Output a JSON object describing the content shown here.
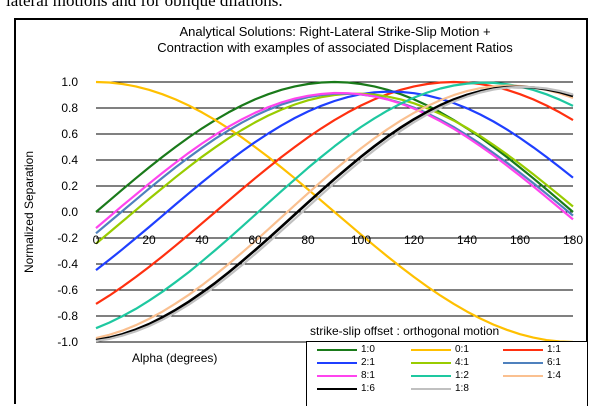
{
  "page": {
    "caption_fragment": "lateral motions and for oblique dilations."
  },
  "chart_data": {
    "type": "line",
    "title": [
      "Analytical Solutions: Right-Lateral Strike-Slip Motion +",
      "Contraction with examples of associated Displacement Ratios"
    ],
    "xlabel": "Alpha (degrees)",
    "ylabel": "Normalized Separation",
    "xlim": [
      0,
      180
    ],
    "ylim": [
      -1.0,
      1.0
    ],
    "x_ticks": [
      0,
      20,
      40,
      60,
      80,
      100,
      120,
      140,
      160,
      180
    ],
    "x_tick_labels": [
      "0",
      "20",
      "40",
      "60",
      "80",
      "100",
      "120",
      "140",
      "160",
      "180"
    ],
    "y_ticks": [
      1.0,
      0.8,
      0.6,
      0.4,
      0.2,
      0.0,
      -0.2,
      -0.4,
      -0.6,
      -0.8,
      -1.0
    ],
    "y_tick_labels": [
      "1.0",
      "0.8",
      "0.6",
      "0.4",
      "0.2",
      "0.0",
      "-0.2",
      "-0.4",
      "-0.6",
      "-0.8",
      "-1.0"
    ],
    "grid": "horizontal",
    "x_step": 5,
    "legend_title": "strike-slip offset : orthogonal motion",
    "legend_position": "bottom-right",
    "series": [
      {
        "name": "1:0",
        "color": "#1a7a1a",
        "values": [
          0.0,
          0.087,
          0.174,
          0.259,
          0.342,
          0.423,
          0.5,
          0.574,
          0.643,
          0.707,
          0.766,
          0.819,
          0.866,
          0.906,
          0.94,
          0.966,
          0.985,
          0.996,
          1.0,
          0.996,
          0.985,
          0.966,
          0.94,
          0.906,
          0.866,
          0.819,
          0.766,
          0.707,
          0.643,
          0.574,
          0.5,
          0.423,
          0.342,
          0.259,
          0.174,
          0.087,
          0.0
        ]
      },
      {
        "name": "0:1",
        "color": "#ffc000",
        "values": [
          1.0,
          0.996,
          0.985,
          0.966,
          0.94,
          0.906,
          0.866,
          0.819,
          0.766,
          0.707,
          0.643,
          0.574,
          0.5,
          0.423,
          0.342,
          0.259,
          0.174,
          0.087,
          0.0,
          -0.087,
          -0.174,
          -0.259,
          -0.342,
          -0.423,
          -0.5,
          -0.574,
          -0.643,
          -0.707,
          -0.766,
          -0.819,
          -0.866,
          -0.906,
          -0.94,
          -0.966,
          -0.985,
          -0.996,
          -1.0
        ]
      },
      {
        "name": "1:1",
        "color": "#ff3010",
        "values": [
          -0.707,
          -0.643,
          -0.574,
          -0.5,
          -0.423,
          -0.342,
          -0.259,
          -0.174,
          -0.087,
          0.0,
          0.087,
          0.174,
          0.259,
          0.342,
          0.423,
          0.5,
          0.574,
          0.643,
          0.707,
          0.766,
          0.819,
          0.866,
          0.906,
          0.94,
          0.966,
          0.985,
          0.996,
          1.0,
          0.996,
          0.985,
          0.966,
          0.94,
          0.906,
          0.866,
          0.819,
          0.766,
          0.707
        ]
      },
      {
        "name": "2:1",
        "color": "#1f3fff",
        "values": [
          -0.447,
          -0.368,
          -0.286,
          -0.201,
          -0.116,
          -0.029,
          0.058,
          0.144,
          0.228,
          0.31,
          0.389,
          0.465,
          0.537,
          0.604,
          0.666,
          0.723,
          0.773,
          0.817,
          0.854,
          0.884,
          0.906,
          0.92,
          0.926,
          0.924,
          0.914,
          0.897,
          0.871,
          0.838,
          0.798,
          0.75,
          0.696,
          0.635,
          0.569,
          0.498,
          0.423,
          0.345,
          0.264
        ]
      },
      {
        "name": "4:1",
        "color": "#99cc00",
        "values": [
          -0.243,
          -0.158,
          -0.072,
          0.014,
          0.1,
          0.184,
          0.267,
          0.347,
          0.425,
          0.498,
          0.567,
          0.631,
          0.689,
          0.742,
          0.788,
          0.827,
          0.859,
          0.883,
          0.9,
          0.909,
          0.91,
          0.903,
          0.888,
          0.866,
          0.836,
          0.798,
          0.754,
          0.703,
          0.646,
          0.584,
          0.516,
          0.444,
          0.369,
          0.29,
          0.209,
          0.126,
          0.042
        ]
      },
      {
        "name": "6:1",
        "color": "#4f81bd",
        "values": [
          -0.164,
          -0.078,
          0.008,
          0.094,
          0.179,
          0.262,
          0.343,
          0.42,
          0.494,
          0.564,
          0.628,
          0.687,
          0.74,
          0.786,
          0.826,
          0.858,
          0.883,
          0.9,
          0.909,
          0.911,
          0.904,
          0.89,
          0.868,
          0.839,
          0.803,
          0.759,
          0.709,
          0.653,
          0.591,
          0.525,
          0.454,
          0.38,
          0.302,
          0.222,
          0.14,
          0.056,
          -0.028
        ]
      },
      {
        "name": "8:1",
        "color": "#ff44ee",
        "values": [
          -0.124,
          -0.038,
          0.049,
          0.134,
          0.218,
          0.3,
          0.379,
          0.455,
          0.527,
          0.594,
          0.656,
          0.712,
          0.763,
          0.806,
          0.843,
          0.872,
          0.894,
          0.908,
          0.915,
          0.914,
          0.905,
          0.889,
          0.865,
          0.834,
          0.795,
          0.75,
          0.698,
          0.64,
          0.576,
          0.507,
          0.435,
          0.358,
          0.279,
          0.197,
          0.113,
          0.028,
          -0.057
        ]
      },
      {
        "name": "1:2",
        "color": "#1ec8a0",
        "values": [
          -0.894,
          -0.851,
          -0.801,
          -0.745,
          -0.682,
          -0.614,
          -0.54,
          -0.462,
          -0.379,
          -0.293,
          -0.205,
          -0.114,
          -0.022,
          0.07,
          0.161,
          0.251,
          0.339,
          0.424,
          0.505,
          0.582,
          0.654,
          0.72,
          0.78,
          0.834,
          0.88,
          0.919,
          0.95,
          0.973,
          0.988,
          0.995,
          0.993,
          0.983,
          0.965,
          0.939,
          0.905,
          0.864,
          0.816
        ]
      },
      {
        "name": "1:4",
        "color": "#fac090",
        "values": [
          -0.97,
          -0.945,
          -0.912,
          -0.871,
          -0.822,
          -0.767,
          -0.705,
          -0.637,
          -0.563,
          -0.484,
          -0.401,
          -0.314,
          -0.225,
          -0.133,
          -0.041,
          0.052,
          0.144,
          0.235,
          0.323,
          0.408,
          0.489,
          0.566,
          0.637,
          0.703,
          0.763,
          0.815,
          0.861,
          0.899,
          0.93,
          0.952,
          0.966,
          0.972,
          0.969,
          0.958,
          0.939,
          0.912,
          0.877
        ]
      },
      {
        "name": "1:6",
        "color": "#000000",
        "values": [
          -0.986,
          -0.967,
          -0.94,
          -0.905,
          -0.862,
          -0.811,
          -0.754,
          -0.69,
          -0.62,
          -0.545,
          -0.465,
          -0.381,
          -0.294,
          -0.204,
          -0.112,
          -0.019,
          0.073,
          0.165,
          0.254,
          0.341,
          0.425,
          0.505,
          0.58,
          0.65,
          0.714,
          0.771,
          0.822,
          0.865,
          0.901,
          0.929,
          0.949,
          0.96,
          0.963,
          0.958,
          0.944,
          0.922,
          0.892
        ]
      },
      {
        "name": "1:8",
        "color": "#c0c0c0",
        "values": [
          -0.992,
          -0.976,
          -0.951,
          -0.918,
          -0.878,
          -0.829,
          -0.774,
          -0.712,
          -0.644,
          -0.571,
          -0.492,
          -0.41,
          -0.324,
          -0.235,
          -0.144,
          -0.052,
          0.04,
          0.132,
          0.222,
          0.31,
          0.395,
          0.476,
          0.553,
          0.625,
          0.691,
          0.751,
          0.804,
          0.85,
          0.888,
          0.919,
          0.942,
          0.956,
          0.962,
          0.96,
          0.95,
          0.931,
          0.904
        ]
      }
    ]
  }
}
